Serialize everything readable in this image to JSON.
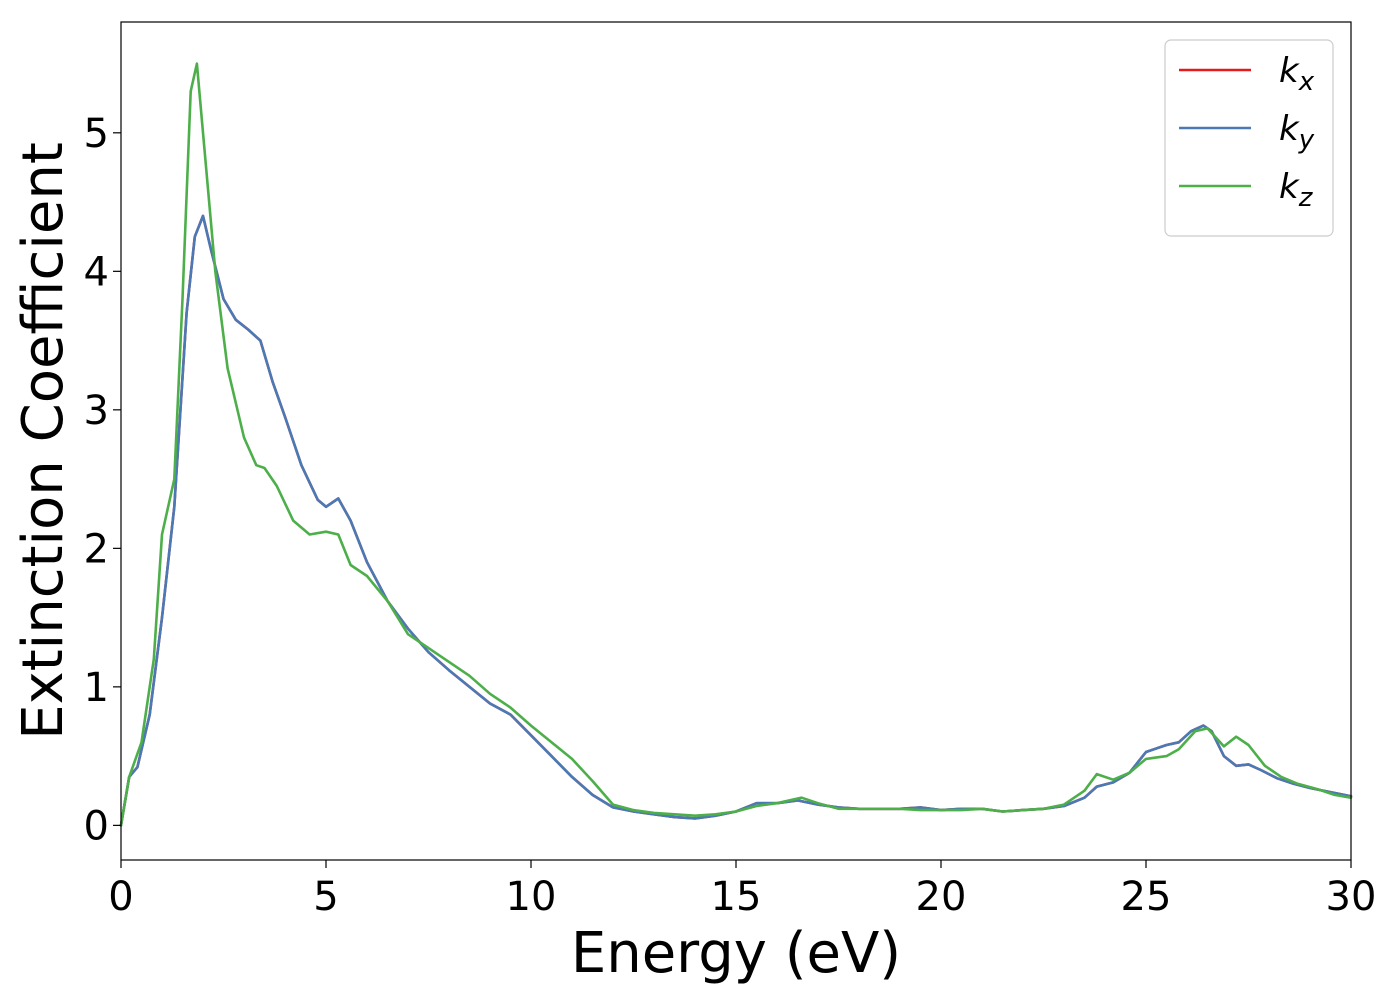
{
  "chart_data": {
    "type": "line",
    "xlabel": "Energy (eV)",
    "ylabel": "Extinction Coefficient",
    "xlim": [
      0,
      30
    ],
    "ylim": [
      -0.25,
      5.8
    ],
    "x_ticks": [
      "0",
      "5",
      "10",
      "15",
      "20",
      "25",
      "30"
    ],
    "y_ticks": [
      "0",
      "1",
      "2",
      "3",
      "4",
      "5"
    ],
    "grid": false,
    "legend_position": "top-right",
    "series": [
      {
        "name": "k_x",
        "label_base": "k",
        "label_sub": "x",
        "color": "#e41a1c",
        "x": [
          0,
          0.2,
          0.4,
          0.7,
          1.0,
          1.3,
          1.6,
          1.8,
          2.0,
          2.2,
          2.5,
          2.8,
          3.1,
          3.4,
          3.7,
          4.0,
          4.4,
          4.8,
          5.0,
          5.3,
          5.6,
          6.0,
          6.5,
          7.0,
          7.5,
          8.0,
          8.5,
          9.0,
          9.5,
          10.0,
          10.5,
          11.0,
          11.5,
          12.0,
          12.5,
          13.0,
          13.5,
          14.0,
          14.5,
          15.0,
          15.5,
          16.0,
          16.5,
          17.0,
          17.5,
          18.0,
          18.5,
          19.0,
          19.5,
          20.0,
          20.5,
          21.0,
          21.5,
          22.0,
          22.5,
          23.0,
          23.5,
          23.8,
          24.2,
          24.6,
          25.0,
          25.2,
          25.5,
          25.8,
          26.1,
          26.4,
          26.6,
          26.9,
          27.2,
          27.5,
          27.8,
          28.2,
          28.6,
          29.0,
          29.5,
          30.0
        ],
        "y": [
          0,
          0.35,
          0.42,
          0.8,
          1.5,
          2.3,
          3.7,
          4.25,
          4.4,
          4.15,
          3.8,
          3.65,
          3.58,
          3.5,
          3.2,
          2.95,
          2.6,
          2.35,
          2.3,
          2.36,
          2.2,
          1.9,
          1.62,
          1.42,
          1.25,
          1.12,
          1.0,
          0.88,
          0.8,
          0.65,
          0.5,
          0.35,
          0.22,
          0.13,
          0.1,
          0.08,
          0.06,
          0.05,
          0.07,
          0.1,
          0.16,
          0.16,
          0.18,
          0.15,
          0.13,
          0.12,
          0.12,
          0.12,
          0.13,
          0.11,
          0.12,
          0.12,
          0.1,
          0.11,
          0.12,
          0.14,
          0.2,
          0.28,
          0.31,
          0.38,
          0.53,
          0.55,
          0.58,
          0.6,
          0.68,
          0.72,
          0.68,
          0.5,
          0.43,
          0.44,
          0.4,
          0.34,
          0.3,
          0.27,
          0.24,
          0.21
        ]
      },
      {
        "name": "k_y",
        "label_base": "k",
        "label_sub": "y",
        "color": "#4a7ab5",
        "x": [
          0,
          0.2,
          0.4,
          0.7,
          1.0,
          1.3,
          1.6,
          1.8,
          2.0,
          2.2,
          2.5,
          2.8,
          3.1,
          3.4,
          3.7,
          4.0,
          4.4,
          4.8,
          5.0,
          5.3,
          5.6,
          6.0,
          6.5,
          7.0,
          7.5,
          8.0,
          8.5,
          9.0,
          9.5,
          10.0,
          10.5,
          11.0,
          11.5,
          12.0,
          12.5,
          13.0,
          13.5,
          14.0,
          14.5,
          15.0,
          15.5,
          16.0,
          16.5,
          17.0,
          17.5,
          18.0,
          18.5,
          19.0,
          19.5,
          20.0,
          20.5,
          21.0,
          21.5,
          22.0,
          22.5,
          23.0,
          23.5,
          23.8,
          24.2,
          24.6,
          25.0,
          25.2,
          25.5,
          25.8,
          26.1,
          26.4,
          26.6,
          26.9,
          27.2,
          27.5,
          27.8,
          28.2,
          28.6,
          29.0,
          29.5,
          30.0
        ],
        "y": [
          0,
          0.35,
          0.42,
          0.8,
          1.5,
          2.3,
          3.7,
          4.25,
          4.4,
          4.15,
          3.8,
          3.65,
          3.58,
          3.5,
          3.2,
          2.95,
          2.6,
          2.35,
          2.3,
          2.36,
          2.2,
          1.9,
          1.62,
          1.42,
          1.25,
          1.12,
          1.0,
          0.88,
          0.8,
          0.65,
          0.5,
          0.35,
          0.22,
          0.13,
          0.1,
          0.08,
          0.06,
          0.05,
          0.07,
          0.1,
          0.16,
          0.16,
          0.18,
          0.15,
          0.13,
          0.12,
          0.12,
          0.12,
          0.13,
          0.11,
          0.12,
          0.12,
          0.1,
          0.11,
          0.12,
          0.14,
          0.2,
          0.28,
          0.31,
          0.38,
          0.53,
          0.55,
          0.58,
          0.6,
          0.68,
          0.72,
          0.68,
          0.5,
          0.43,
          0.44,
          0.4,
          0.34,
          0.3,
          0.27,
          0.24,
          0.21
        ]
      },
      {
        "name": "k_z",
        "label_base": "k",
        "label_sub": "z",
        "color": "#4daf4a",
        "x": [
          0,
          0.2,
          0.5,
          0.8,
          1.0,
          1.3,
          1.5,
          1.7,
          1.85,
          2.0,
          2.3,
          2.6,
          3.0,
          3.3,
          3.5,
          3.8,
          4.2,
          4.6,
          5.0,
          5.3,
          5.6,
          6.0,
          6.5,
          7.0,
          7.5,
          8.0,
          8.5,
          9.0,
          9.5,
          10.0,
          10.5,
          11.0,
          11.5,
          12.0,
          12.5,
          13.0,
          13.5,
          14.0,
          14.5,
          15.0,
          15.5,
          16.0,
          16.6,
          17.0,
          17.5,
          18.0,
          18.5,
          19.0,
          19.5,
          20.0,
          20.5,
          21.0,
          21.5,
          22.0,
          22.5,
          23.0,
          23.5,
          23.8,
          24.2,
          24.6,
          25.0,
          25.5,
          25.8,
          26.2,
          26.5,
          26.9,
          27.2,
          27.5,
          27.9,
          28.3,
          28.7,
          29.2,
          29.6,
          30.0
        ],
        "y": [
          0,
          0.35,
          0.6,
          1.2,
          2.1,
          2.5,
          3.8,
          5.3,
          5.5,
          5.0,
          4.0,
          3.3,
          2.8,
          2.6,
          2.58,
          2.45,
          2.2,
          2.1,
          2.12,
          2.1,
          1.88,
          1.8,
          1.62,
          1.38,
          1.28,
          1.18,
          1.08,
          0.95,
          0.85,
          0.72,
          0.6,
          0.48,
          0.32,
          0.15,
          0.11,
          0.09,
          0.08,
          0.07,
          0.08,
          0.1,
          0.14,
          0.16,
          0.2,
          0.16,
          0.12,
          0.12,
          0.12,
          0.12,
          0.11,
          0.11,
          0.11,
          0.12,
          0.1,
          0.11,
          0.12,
          0.15,
          0.25,
          0.37,
          0.33,
          0.38,
          0.48,
          0.5,
          0.55,
          0.68,
          0.7,
          0.57,
          0.64,
          0.58,
          0.43,
          0.35,
          0.3,
          0.26,
          0.22,
          0.2
        ]
      }
    ]
  }
}
